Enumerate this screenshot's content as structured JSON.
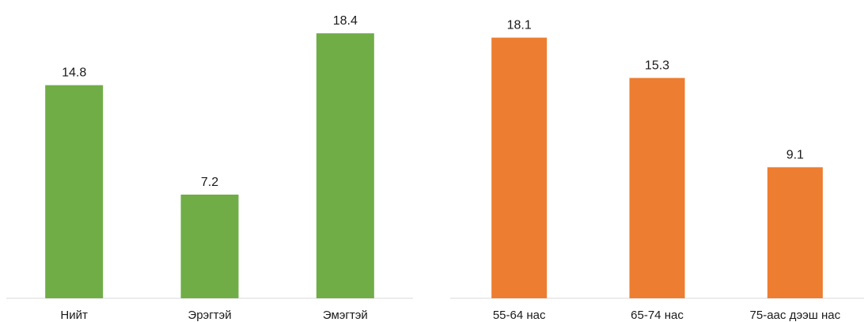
{
  "chart_data": [
    {
      "type": "bar",
      "categories": [
        "Нийт",
        "Эрэгтэй",
        "Эмэгтэй"
      ],
      "values": [
        14.8,
        7.2,
        18.4
      ],
      "data_labels": [
        "14.8",
        "7.2",
        "18.4"
      ],
      "bar_color": "#70ad47",
      "title": "",
      "xlabel": "",
      "ylabel": "",
      "ylim": [
        0,
        20
      ],
      "grid": false,
      "legend": "none"
    },
    {
      "type": "bar",
      "categories": [
        "55-64 нас",
        "65-74 нас",
        "75-аас дээш нас"
      ],
      "values": [
        18.1,
        15.3,
        9.1
      ],
      "data_labels": [
        "18.1",
        "15.3",
        "9.1"
      ],
      "bar_color": "#ed7d31",
      "title": "",
      "xlabel": "",
      "ylabel": "",
      "ylim": [
        0,
        20
      ],
      "grid": false,
      "legend": "none"
    }
  ],
  "colors": {
    "axis": "#d9d9d9",
    "text": "#1a1a1a"
  }
}
